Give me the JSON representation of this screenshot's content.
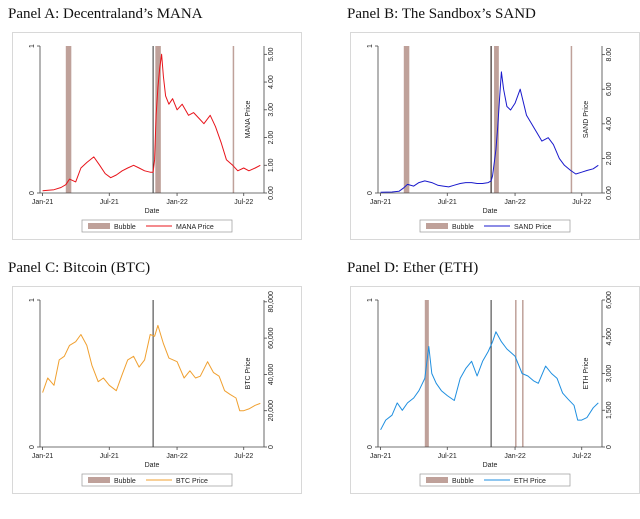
{
  "charts": [
    {
      "panel_title": "Panel A: Decentraland’s MANA",
      "chart_data": {
        "type": "line",
        "xlabel": "Date",
        "x_ticks": [
          "Jan-21",
          "Jul-21",
          "Jan-22",
          "Jul-22"
        ],
        "left_axis": {
          "ticks": [
            "0",
            "1"
          ],
          "range": [
            0,
            1
          ]
        },
        "right_axis": {
          "label": "MANA Price",
          "ticks": [
            "0.00",
            "1.00",
            "2.00",
            "3.00",
            "4.00",
            "5.00"
          ],
          "range": [
            0,
            5.3
          ]
        },
        "legend": {
          "placement": "bottom",
          "entries": [
            "Bubble",
            "MANA Price"
          ]
        },
        "series": [
          {
            "name": "MANA Price",
            "color": "#e8141b",
            "x": [
              "2021-01-01",
              "2021-02-01",
              "2021-02-20",
              "2021-03-05",
              "2021-03-15",
              "2021-04-01",
              "2021-04-15",
              "2021-05-01",
              "2021-05-20",
              "2021-06-05",
              "2021-06-20",
              "2021-07-05",
              "2021-07-20",
              "2021-08-05",
              "2021-08-20",
              "2021-09-05",
              "2021-09-20",
              "2021-10-05",
              "2021-10-20",
              "2021-10-28",
              "2021-11-01",
              "2021-11-05",
              "2021-11-10",
              "2021-11-15",
              "2021-11-20",
              "2021-11-25",
              "2021-12-01",
              "2021-12-10",
              "2021-12-20",
              "2022-01-01",
              "2022-01-15",
              "2022-02-01",
              "2022-02-15",
              "2022-03-01",
              "2022-03-15",
              "2022-04-01",
              "2022-04-15",
              "2022-05-01",
              "2022-05-15",
              "2022-06-01",
              "2022-06-15",
              "2022-07-01",
              "2022-07-15",
              "2022-08-01",
              "2022-08-15"
            ],
            "y": [
              0.08,
              0.12,
              0.2,
              0.3,
              0.5,
              0.4,
              0.9,
              1.1,
              1.3,
              1.0,
              0.7,
              0.55,
              0.65,
              0.8,
              0.9,
              1.0,
              0.9,
              0.8,
              0.75,
              0.75,
              1.2,
              2.8,
              3.8,
              4.5,
              5.0,
              4.2,
              3.5,
              3.2,
              3.4,
              3.0,
              3.2,
              2.8,
              2.9,
              2.7,
              2.5,
              2.8,
              2.4,
              1.8,
              1.2,
              1.0,
              0.8,
              0.9,
              0.8,
              0.9,
              1.0
            ]
          }
        ],
        "bubbles": [
          [
            "2021-03-05",
            "2021-03-20"
          ],
          [
            "2021-11-03",
            "2021-11-18"
          ],
          [
            "2022-06-01",
            "2022-06-05"
          ]
        ],
        "vline": "2021-10-28"
      }
    },
    {
      "panel_title": "Panel B: The Sandbox’s SAND",
      "chart_data": {
        "type": "line",
        "xlabel": "Date",
        "x_ticks": [
          "Jan-21",
          "Jul-21",
          "Jan-22",
          "Jul-22"
        ],
        "left_axis": {
          "ticks": [
            "0",
            "1"
          ],
          "range": [
            0,
            1
          ]
        },
        "right_axis": {
          "label": "SAND Price",
          "ticks": [
            "0.00",
            "2.00",
            "4.00",
            "6.00",
            "8.00"
          ],
          "range": [
            0,
            8.5
          ]
        },
        "legend": {
          "placement": "bottom",
          "entries": [
            "Bubble",
            "SAND Price"
          ]
        },
        "series": [
          {
            "name": "SAND Price",
            "color": "#1a1acc",
            "x": [
              "2021-01-01",
              "2021-02-01",
              "2021-02-20",
              "2021-03-05",
              "2021-03-15",
              "2021-04-01",
              "2021-04-15",
              "2021-05-01",
              "2021-05-20",
              "2021-06-05",
              "2021-06-20",
              "2021-07-05",
              "2021-07-20",
              "2021-08-05",
              "2021-08-20",
              "2021-09-05",
              "2021-09-20",
              "2021-10-05",
              "2021-10-20",
              "2021-10-28",
              "2021-11-01",
              "2021-11-10",
              "2021-11-15",
              "2021-11-20",
              "2021-11-25",
              "2021-12-01",
              "2021-12-10",
              "2021-12-20",
              "2022-01-01",
              "2022-01-15",
              "2022-02-01",
              "2022-02-15",
              "2022-03-01",
              "2022-03-15",
              "2022-04-01",
              "2022-04-15",
              "2022-05-01",
              "2022-05-15",
              "2022-06-01",
              "2022-06-15",
              "2022-07-01",
              "2022-07-15",
              "2022-08-01",
              "2022-08-15"
            ],
            "y": [
              0.04,
              0.06,
              0.1,
              0.3,
              0.5,
              0.4,
              0.6,
              0.7,
              0.6,
              0.45,
              0.4,
              0.35,
              0.45,
              0.55,
              0.6,
              0.6,
              0.55,
              0.55,
              0.6,
              0.7,
              1.0,
              2.5,
              3.8,
              5.5,
              7.0,
              6.0,
              5.0,
              4.8,
              5.2,
              6.0,
              4.5,
              4.0,
              3.5,
              3.0,
              3.2,
              2.8,
              2.0,
              1.6,
              1.3,
              1.1,
              1.2,
              1.3,
              1.4,
              1.6
            ]
          }
        ],
        "bubbles": [
          [
            "2021-03-05",
            "2021-03-20"
          ],
          [
            "2021-10-26",
            "2021-10-30"
          ],
          [
            "2021-11-05",
            "2021-11-18"
          ],
          [
            "2022-06-01",
            "2022-06-04"
          ]
        ],
        "vline": "2021-10-28"
      }
    },
    {
      "panel_title": "Panel C: Bitcoin (BTC)",
      "chart_data": {
        "type": "line",
        "xlabel": "Date",
        "x_ticks": [
          "Jan-21",
          "Jul-21",
          "Jan-22",
          "Jul-22"
        ],
        "left_axis": {
          "ticks": [
            "0",
            "1"
          ],
          "range": [
            0,
            1
          ]
        },
        "right_axis": {
          "label": "BTC Price",
          "ticks": [
            "0",
            "20,000",
            "40,000",
            "60,000",
            "80,000"
          ],
          "range": [
            0,
            81000
          ]
        },
        "legend": {
          "placement": "bottom",
          "entries": [
            "Bubble",
            "BTC Price"
          ]
        },
        "series": [
          {
            "name": "BTC Price",
            "color": "#f0a030",
            "x": [
              "2021-01-01",
              "2021-01-15",
              "2021-02-01",
              "2021-02-15",
              "2021-03-01",
              "2021-03-15",
              "2021-04-01",
              "2021-04-15",
              "2021-05-01",
              "2021-05-15",
              "2021-06-01",
              "2021-06-15",
              "2021-07-01",
              "2021-07-20",
              "2021-08-05",
              "2021-08-20",
              "2021-09-05",
              "2021-09-20",
              "2021-10-05",
              "2021-10-20",
              "2021-11-01",
              "2021-11-10",
              "2021-11-25",
              "2021-12-10",
              "2022-01-01",
              "2022-01-20",
              "2022-02-05",
              "2022-02-20",
              "2022-03-05",
              "2022-03-25",
              "2022-04-10",
              "2022-04-25",
              "2022-05-10",
              "2022-05-25",
              "2022-06-10",
              "2022-06-20",
              "2022-07-01",
              "2022-07-15",
              "2022-08-01",
              "2022-08-15"
            ],
            "y": [
              30000,
              38000,
              34000,
              48000,
              50000,
              56000,
              58000,
              62000,
              56000,
              45000,
              36000,
              38000,
              34000,
              31000,
              40000,
              48000,
              50000,
              44000,
              48000,
              62000,
              61000,
              67000,
              57000,
              49000,
              47000,
              38000,
              42000,
              38000,
              39000,
              47000,
              41000,
              39000,
              31000,
              29000,
              27000,
              20000,
              20000,
              21000,
              23000,
              24000
            ]
          }
        ],
        "bubbles": [],
        "vline": "2021-10-28"
      }
    },
    {
      "panel_title": "Panel D: Ether (ETH)",
      "chart_data": {
        "type": "line",
        "xlabel": "Date",
        "x_ticks": [
          "Jan-21",
          "Jul-21",
          "Jan-22",
          "Jul-22"
        ],
        "left_axis": {
          "ticks": [
            "0",
            "1"
          ],
          "range": [
            0,
            1
          ]
        },
        "right_axis": {
          "label": "ETH Price",
          "ticks": [
            "0",
            "1,500",
            "3,000",
            "4,500",
            "6,000"
          ],
          "range": [
            0,
            6000
          ]
        },
        "legend": {
          "placement": "bottom",
          "entries": [
            "Bubble",
            "ETH Price"
          ]
        },
        "series": [
          {
            "name": "ETH Price",
            "color": "#1f8fe0",
            "x": [
              "2021-01-01",
              "2021-01-15",
              "2021-02-01",
              "2021-02-15",
              "2021-03-01",
              "2021-03-15",
              "2021-04-01",
              "2021-04-15",
              "2021-05-01",
              "2021-05-12",
              "2021-05-20",
              "2021-06-01",
              "2021-06-15",
              "2021-07-01",
              "2021-07-20",
              "2021-08-05",
              "2021-08-20",
              "2021-09-05",
              "2021-09-20",
              "2021-10-05",
              "2021-10-20",
              "2021-11-01",
              "2021-11-10",
              "2021-11-25",
              "2021-12-10",
              "2022-01-01",
              "2022-01-20",
              "2022-02-05",
              "2022-02-20",
              "2022-03-05",
              "2022-03-25",
              "2022-04-10",
              "2022-04-25",
              "2022-05-10",
              "2022-05-25",
              "2022-06-10",
              "2022-06-20",
              "2022-07-01",
              "2022-07-15",
              "2022-08-01",
              "2022-08-15"
            ],
            "y": [
              700,
              1100,
              1300,
              1800,
              1500,
              1800,
              2000,
              2300,
              2800,
              4100,
              3000,
              2600,
              2300,
              2100,
              1900,
              2800,
              3200,
              3500,
              2900,
              3500,
              3900,
              4300,
              4700,
              4300,
              4000,
              3700,
              3000,
              2900,
              2700,
              2600,
              3300,
              3000,
              2800,
              2200,
              1950,
              1700,
              1100,
              1100,
              1200,
              1600,
              1800
            ]
          }
        ],
        "bubbles": [
          [
            "2021-05-01",
            "2021-05-12"
          ],
          [
            "2022-01-01",
            "2022-01-04"
          ],
          [
            "2022-01-20",
            "2022-01-24"
          ]
        ],
        "vline": "2021-10-28"
      }
    }
  ]
}
